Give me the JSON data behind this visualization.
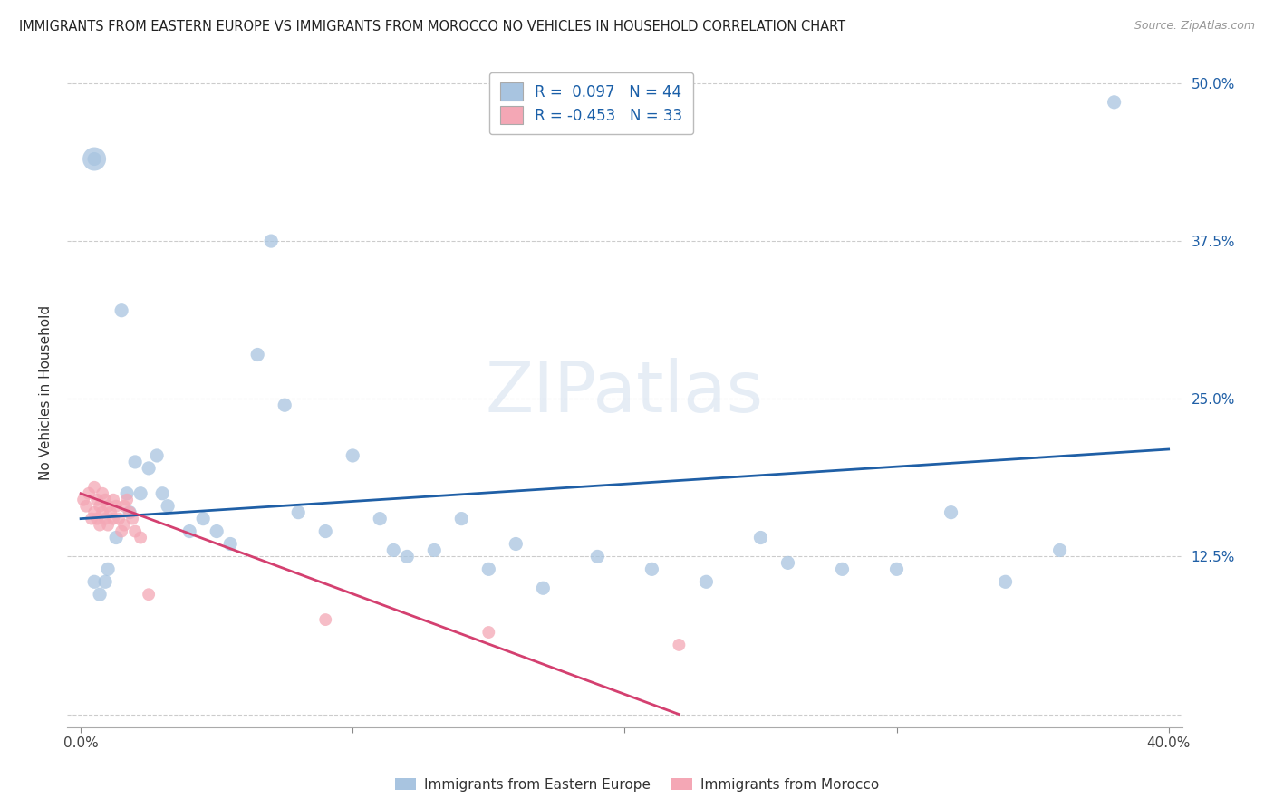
{
  "title": "IMMIGRANTS FROM EASTERN EUROPE VS IMMIGRANTS FROM MOROCCO NO VEHICLES IN HOUSEHOLD CORRELATION CHART",
  "source": "Source: ZipAtlas.com",
  "xlabel_blue": "Immigrants from Eastern Europe",
  "xlabel_pink": "Immigrants from Morocco",
  "ylabel": "No Vehicles in Household",
  "xlim": [
    -0.005,
    0.405
  ],
  "ylim": [
    -0.01,
    0.52
  ],
  "xticks": [
    0.0,
    0.1,
    0.2,
    0.3,
    0.4
  ],
  "xtick_labels": [
    "0.0%",
    "",
    "",
    "",
    "40.0%"
  ],
  "yticks": [
    0.0,
    0.125,
    0.25,
    0.375,
    0.5
  ],
  "ytick_labels_left": [
    "",
    "",
    "",
    "",
    ""
  ],
  "ytick_labels_right": [
    "",
    "12.5%",
    "25.0%",
    "37.5%",
    "50.0%"
  ],
  "R_blue": 0.097,
  "N_blue": 44,
  "R_pink": -0.453,
  "N_pink": 33,
  "blue_color": "#a8c4e0",
  "blue_line_color": "#1f5fa6",
  "pink_color": "#f4a7b5",
  "pink_line_color": "#d44070",
  "legend_text_color": "#1a5fa8",
  "grid_color": "#cccccc",
  "blue_x": [
    0.005,
    0.01,
    0.013,
    0.015,
    0.018,
    0.02,
    0.022,
    0.025,
    0.028,
    0.03,
    0.032,
    0.04,
    0.045,
    0.05,
    0.055,
    0.065,
    0.07,
    0.075,
    0.08,
    0.09,
    0.1,
    0.11,
    0.115,
    0.12,
    0.13,
    0.14,
    0.15,
    0.16,
    0.17,
    0.19,
    0.21,
    0.23,
    0.25,
    0.26,
    0.28,
    0.3,
    0.32,
    0.34,
    0.36,
    0.38,
    0.005,
    0.007,
    0.009,
    0.017
  ],
  "blue_y": [
    0.44,
    0.115,
    0.14,
    0.32,
    0.16,
    0.2,
    0.175,
    0.195,
    0.205,
    0.175,
    0.165,
    0.145,
    0.155,
    0.145,
    0.135,
    0.285,
    0.375,
    0.245,
    0.16,
    0.145,
    0.205,
    0.155,
    0.13,
    0.125,
    0.13,
    0.155,
    0.115,
    0.135,
    0.1,
    0.125,
    0.115,
    0.105,
    0.14,
    0.12,
    0.115,
    0.115,
    0.16,
    0.105,
    0.13,
    0.485,
    0.105,
    0.095,
    0.105,
    0.175
  ],
  "pink_x": [
    0.001,
    0.002,
    0.003,
    0.004,
    0.005,
    0.005,
    0.006,
    0.006,
    0.007,
    0.007,
    0.008,
    0.008,
    0.009,
    0.009,
    0.01,
    0.01,
    0.011,
    0.012,
    0.012,
    0.013,
    0.014,
    0.015,
    0.016,
    0.016,
    0.017,
    0.018,
    0.019,
    0.02,
    0.022,
    0.025,
    0.09,
    0.15,
    0.22
  ],
  "pink_y": [
    0.17,
    0.165,
    0.175,
    0.155,
    0.18,
    0.16,
    0.17,
    0.155,
    0.165,
    0.15,
    0.175,
    0.16,
    0.17,
    0.155,
    0.165,
    0.15,
    0.16,
    0.17,
    0.155,
    0.165,
    0.155,
    0.145,
    0.165,
    0.15,
    0.17,
    0.16,
    0.155,
    0.145,
    0.14,
    0.095,
    0.075,
    0.065,
    0.055
  ],
  "blue_line_x": [
    0.0,
    0.4
  ],
  "blue_line_y": [
    0.155,
    0.21
  ],
  "pink_line_x": [
    0.0,
    0.22
  ],
  "pink_line_y": [
    0.175,
    0.0
  ]
}
